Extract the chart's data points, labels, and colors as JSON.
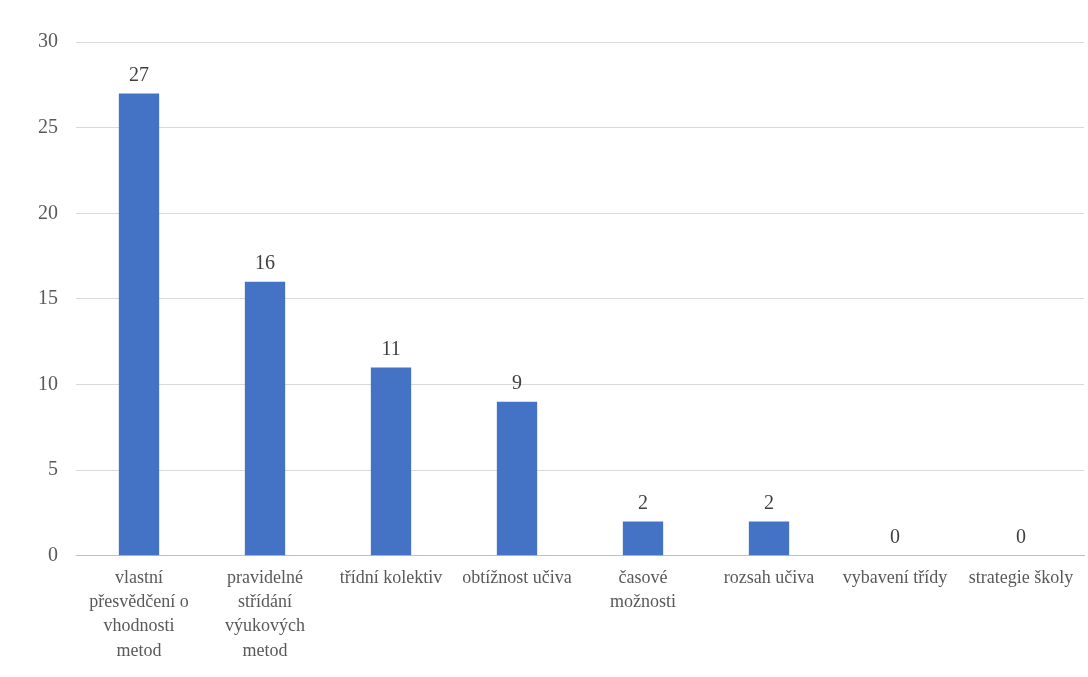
{
  "chart_data": {
    "type": "bar",
    "categories": [
      "vlastní přesvědčení o vhodnosti metod",
      "pravidelné střídání výukových metod",
      "třídní kolektiv",
      "obtížnost učiva",
      "časové možnosti",
      "rozsah učiva",
      "vybavení třídy",
      "strategie školy"
    ],
    "values": [
      27,
      16,
      11,
      9,
      2,
      2,
      0,
      0
    ],
    "color": "#4472c4",
    "ylim": [
      0,
      30
    ],
    "yticks": [
      0,
      5,
      10,
      15,
      20,
      25,
      30
    ],
    "grid": "y",
    "data_labels": true
  }
}
